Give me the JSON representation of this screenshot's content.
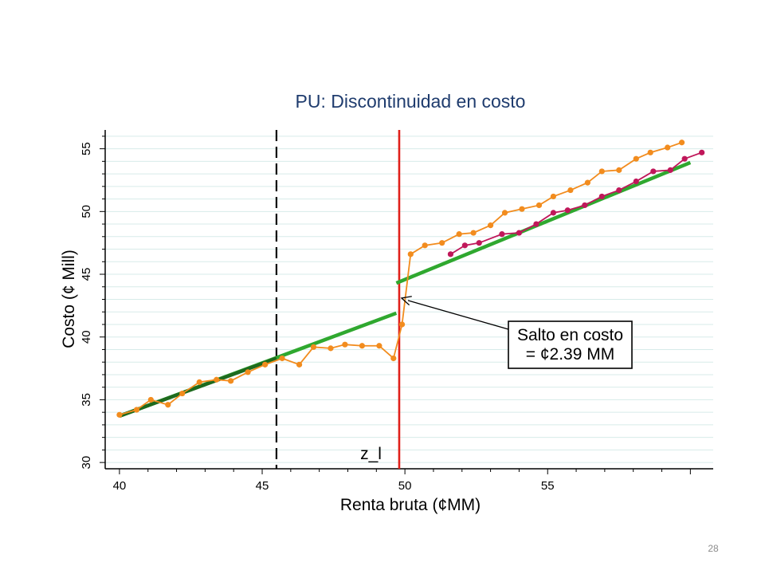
{
  "page_number": "28",
  "chart_data": {
    "type": "line",
    "title": "PU: Discontinuidad en costo",
    "xlabel": "Renta bruta (¢MM)",
    "ylabel": "Costo (¢ Mill)",
    "xlim": [
      39.5,
      60.8
    ],
    "ylim": [
      29.5,
      56.5
    ],
    "xticks": [
      "40",
      "45",
      "50",
      "55"
    ],
    "yticks": [
      "30",
      "35",
      "40",
      "45",
      "50",
      "55"
    ],
    "grid": true,
    "series": [
      {
        "color": "#f28c1e",
        "x": [
          40,
          40.6,
          41.1,
          41.7,
          42.2,
          42.8,
          43.4,
          43.9,
          44.5,
          45.1,
          45.7,
          46.3,
          46.8,
          47.4,
          47.9,
          48.5,
          49.1,
          49.6,
          49.9,
          50.2,
          50.7,
          51.3,
          51.9,
          52.4,
          53,
          53.5,
          54.1,
          54.7,
          55.2,
          55.8,
          56.4,
          56.9,
          57.5,
          58.1,
          58.6,
          59.2,
          59.7
        ],
        "y": [
          33.8,
          34.2,
          35.0,
          34.6,
          35.5,
          36.4,
          36.6,
          36.5,
          37.2,
          37.8,
          38.3,
          37.8,
          39.2,
          39.1,
          39.4,
          39.3,
          39.3,
          38.3,
          41.0,
          46.6,
          47.3,
          47.5,
          48.2,
          48.3,
          48.9,
          49.9,
          50.2,
          50.5,
          51.2,
          51.7,
          52.3,
          53.2,
          53.3,
          54.2,
          54.7,
          55.1,
          55.5
        ]
      },
      {
        "color": "#c0175a",
        "x": [
          51.6,
          52.1,
          52.6,
          53.4,
          54.0,
          54.6,
          55.2,
          55.7,
          56.3,
          56.9,
          57.5,
          58.1,
          58.7,
          59.3,
          59.8,
          60.4
        ],
        "y": [
          46.6,
          47.3,
          47.5,
          48.2,
          48.3,
          49.0,
          49.9,
          50.1,
          50.5,
          51.2,
          51.7,
          52.4,
          53.2,
          53.3,
          54.2,
          54.7
        ]
      }
    ],
    "fit_lines": [
      {
        "color": "#2fa82f",
        "x": [
          40,
          49.7
        ],
        "y": [
          33.7,
          41.9
        ]
      },
      {
        "color": "#2fa82f",
        "x": [
          49.7,
          60
        ],
        "y": [
          44.3,
          53.9
        ]
      },
      {
        "color": "#1e6a1e",
        "x": [
          40,
          45.5
        ],
        "y": [
          33.7,
          38.3
        ]
      }
    ],
    "reference_lines": [
      {
        "x": 45.5,
        "style": "dashed",
        "color": "#000000"
      },
      {
        "x": 49.8,
        "style": "solid",
        "color": "#e0201a",
        "label": "z_l"
      }
    ],
    "annotation": {
      "line1": "Salto en costo",
      "line2": "= ¢2.39 MM",
      "arrow_to": {
        "x": 49.8,
        "y": 43.1
      }
    }
  }
}
